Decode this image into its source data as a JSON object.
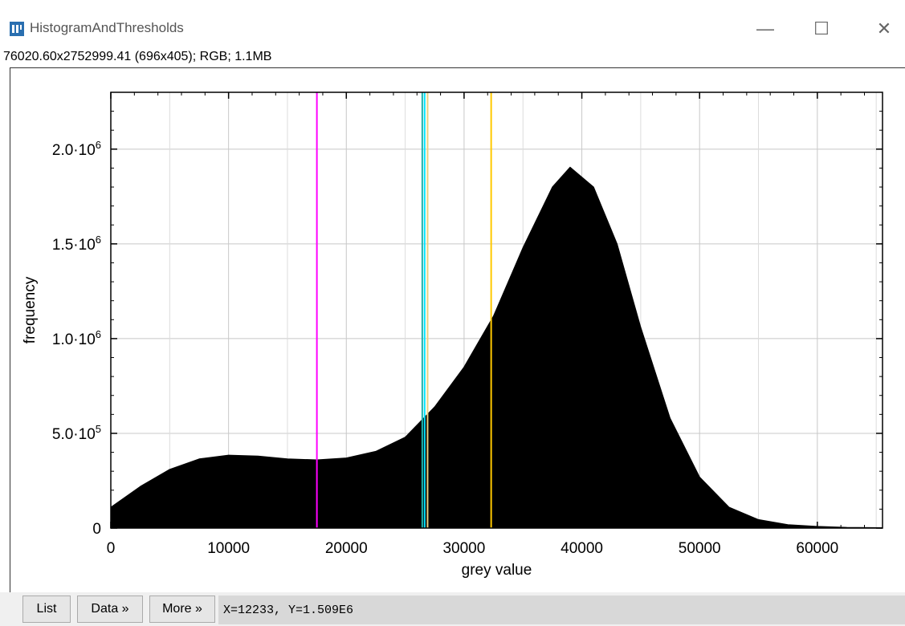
{
  "window": {
    "title": "HistogramAndThresholds",
    "subtitle": "76020.60x2752999.41  (696x405); RGB; 1.1MB",
    "minimize": "—",
    "maximize": "☐",
    "close": "✕"
  },
  "buttons": {
    "list": "List",
    "data": "Data »",
    "more": "More »"
  },
  "status": {
    "coords": "X=12233, Y=1.509E6"
  },
  "colors": {
    "threshold_magenta": "#ff00ff",
    "threshold_cyan": "#00e5ff",
    "threshold_teal": "#20b2aa",
    "threshold_yellow": "#ffc800",
    "histogram_fill": "#000000"
  },
  "chart_data": {
    "type": "area",
    "xlabel": "grey value",
    "ylabel": "frequency",
    "xlim": [
      0,
      65535
    ],
    "ylim": [
      0,
      2300000
    ],
    "x_ticks": [
      0,
      10000,
      20000,
      30000,
      40000,
      50000,
      60000
    ],
    "x_tick_labels": [
      "0",
      "10000",
      "20000",
      "30000",
      "40000",
      "50000",
      "60000"
    ],
    "y_ticks": [
      0,
      500000,
      1000000,
      1500000,
      2000000
    ],
    "y_tick_labels": [
      {
        "base": "0",
        "exp": ""
      },
      {
        "base": "5.0·10",
        "exp": "5"
      },
      {
        "base": "1.0·10",
        "exp": "6"
      },
      {
        "base": "1.5·10",
        "exp": "6"
      },
      {
        "base": "2.0·10",
        "exp": "6"
      }
    ],
    "grid": true,
    "series": [
      {
        "x": [
          0,
          2500,
          5000,
          7500,
          10000,
          12500,
          15000,
          17500,
          20000,
          22500,
          25000,
          27500,
          30000,
          32500,
          35000,
          37500,
          39000,
          41000,
          43000,
          45000,
          47500,
          50000,
          52500,
          55000,
          57500,
          60000,
          62500,
          65535
        ],
        "values": [
          110000,
          220000,
          310000,
          365000,
          385000,
          380000,
          365000,
          360000,
          370000,
          405000,
          480000,
          640000,
          850000,
          1120000,
          1480000,
          1800000,
          1905000,
          1800000,
          1500000,
          1060000,
          580000,
          270000,
          110000,
          45000,
          18000,
          9000,
          4000,
          2000
        ]
      }
    ],
    "thresholds": [
      {
        "x": 17500,
        "color": "#ff00ff"
      },
      {
        "x": 26450,
        "color": "#20b2aa"
      },
      {
        "x": 26650,
        "color": "#00e5ff"
      },
      {
        "x": 26900,
        "color": "#e8d080"
      },
      {
        "x": 32300,
        "color": "#ffc800"
      }
    ]
  }
}
